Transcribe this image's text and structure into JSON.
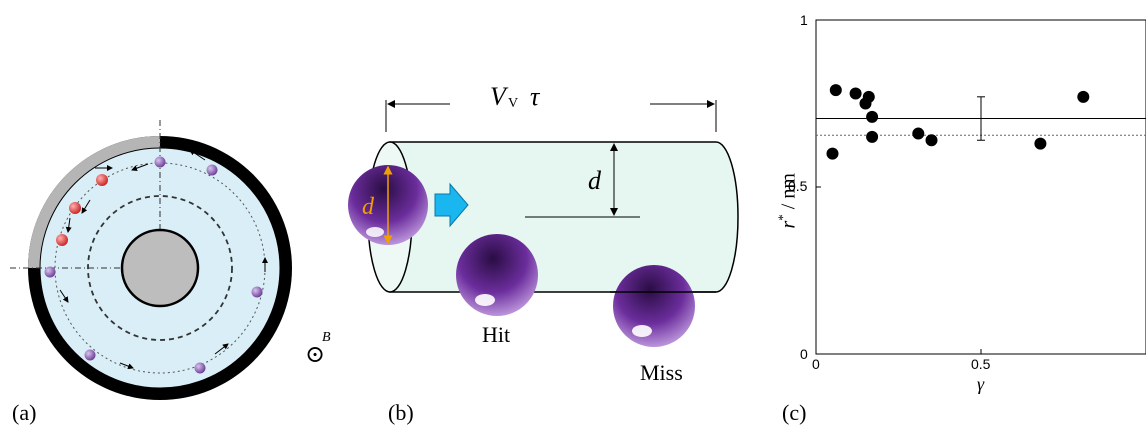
{
  "panel_a": {
    "caption": "(a)",
    "field_symbol": "B",
    "colors": {
      "ring_dark": "#000000",
      "ring_gray": "#b5b5b5",
      "inside": "#d9eef6",
      "red_ion": "#e03a3a",
      "purple_ion": "#8a5bb3",
      "core": "#bdbdbd"
    }
  },
  "panel_b": {
    "caption": "(b)",
    "length_v": "V",
    "length_sub": "V",
    "length_tau": "τ",
    "radius_label": "d",
    "diameter_label": "d",
    "hit_label": "Hit",
    "miss_label": "Miss",
    "colors": {
      "cylinder": "#e6f6f0",
      "sphere": "#6b2d9c",
      "arrow": "#1ab6f0",
      "diameter": "#f0a000"
    }
  },
  "panel_c": {
    "caption": "(c)",
    "y_axis_r": "r",
    "y_axis_star": "*",
    "y_axis_unit": "/ nm",
    "x_axis_label": "γ"
  },
  "chart_data": {
    "type": "scatter",
    "x": [
      0.06,
      0.05,
      0.12,
      0.15,
      0.16,
      0.17,
      0.17,
      0.31,
      0.35,
      0.68,
      0.81
    ],
    "y": [
      0.79,
      0.6,
      0.78,
      0.75,
      0.77,
      0.71,
      0.65,
      0.66,
      0.64,
      0.63,
      0.77
    ],
    "xlim": [
      0,
      1
    ],
    "ylim": [
      0,
      1
    ],
    "xticks": [
      "0",
      "0.5"
    ],
    "yticks": [
      "0",
      "0.5",
      "1"
    ],
    "mean_line": 0.705,
    "dotted_line": 0.655,
    "error_bar": {
      "x": 0.5,
      "low": 0.64,
      "high": 0.77
    },
    "grid": false,
    "legend": "none"
  }
}
